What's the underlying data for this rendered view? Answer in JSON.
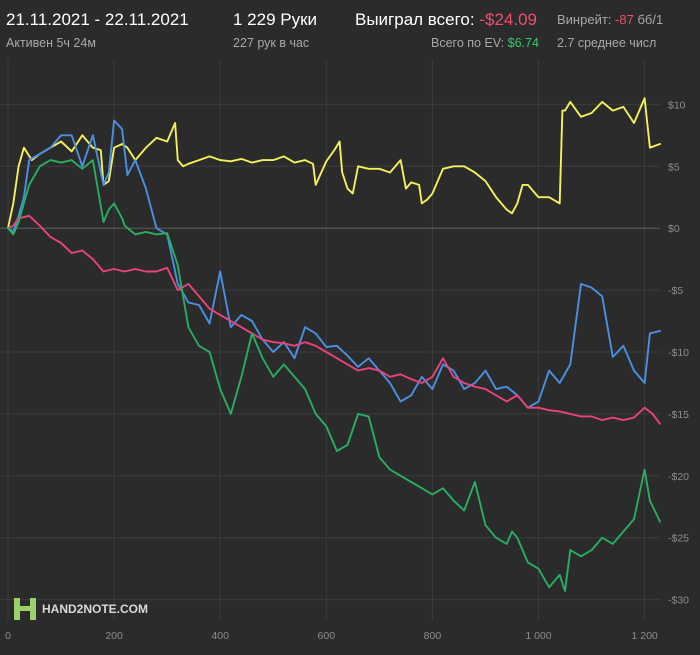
{
  "header": {
    "date_range": "21.11.2021 - 22.11.2021",
    "active_time": "Активен 5ч 24м",
    "hands": "1 229 Руки",
    "hands_per_hour": "227 рук в час",
    "won_label": "Выиграл всего:",
    "won_value": "-$24.09",
    "ev_label": "Всего по EV:",
    "ev_value": "$6.74",
    "winrate_label": "Винрейт:",
    "winrate_value": "-87",
    "winrate_unit": "бб/1",
    "avg_text": "2.7 среднее числ"
  },
  "logo": {
    "text": "HAND2NOTE.COM"
  },
  "colors": {
    "background": "#2b2b2b",
    "negative": "#ef4e6e",
    "positive": "#2ecc71",
    "yellow": "#f4f05a",
    "blue": "#4a90e2",
    "pink": "#e8437a",
    "green": "#27ae60"
  },
  "chart_data": {
    "type": "line",
    "xlim": [
      0,
      1229
    ],
    "ylim": [
      -31,
      11
    ],
    "x_ticks": [
      0,
      200,
      400,
      600,
      800,
      1000,
      1200
    ],
    "x_tick_labels": [
      "0",
      "200",
      "400",
      "600",
      "800",
      "1 000",
      "1 200"
    ],
    "y_ticks": [
      10,
      5,
      0,
      -5,
      -10,
      -15,
      -20,
      -25,
      -30
    ],
    "y_tick_labels": [
      "$10",
      "$5",
      "$0",
      "-$5",
      "-$10",
      "-$15",
      "-$20",
      "-$25",
      "-$30"
    ],
    "grid": true,
    "series": [
      {
        "color": "#f4f05a",
        "x": [
          0,
          10,
          20,
          30,
          45,
          60,
          80,
          100,
          120,
          140,
          160,
          175,
          180,
          190,
          200,
          215,
          225,
          240,
          260,
          280,
          300,
          315,
          320,
          330,
          340,
          360,
          380,
          400,
          420,
          440,
          460,
          480,
          500,
          520,
          540,
          560,
          575,
          580,
          600,
          615,
          625,
          630,
          640,
          650,
          660,
          680,
          700,
          720,
          740,
          750,
          760,
          775,
          780,
          790,
          800,
          820,
          840,
          860,
          880,
          900,
          920,
          940,
          950,
          960,
          970,
          980,
          1000,
          1020,
          1040,
          1045,
          1050,
          1060,
          1080,
          1100,
          1120,
          1140,
          1160,
          1180,
          1200,
          1210,
          1229
        ],
        "y": [
          0,
          2,
          5,
          6.5,
          5.5,
          6,
          6.5,
          7,
          6.2,
          7.5,
          6.5,
          6.3,
          3.5,
          3.8,
          6.5,
          6.8,
          6.5,
          5.5,
          6.5,
          7.3,
          7,
          8.5,
          5.5,
          5,
          5.2,
          5.5,
          5.8,
          5.5,
          5.4,
          5.6,
          5.3,
          5.5,
          5.5,
          5.8,
          5.3,
          5.5,
          5.2,
          3.5,
          5.4,
          6.3,
          7,
          4.5,
          3.2,
          2.8,
          5,
          4.8,
          4.8,
          4.5,
          5.5,
          3.2,
          3.7,
          3.5,
          2,
          2.3,
          2.8,
          4.8,
          5,
          5,
          4.5,
          3.8,
          2.5,
          1.5,
          1.2,
          2,
          3.5,
          3.5,
          2.5,
          2.5,
          2,
          9.5,
          9.5,
          10.2,
          9,
          9.3,
          10.2,
          9.5,
          9.8,
          8.5,
          10.5,
          6.5,
          6.8
        ]
      },
      {
        "color": "#4a90e2",
        "x": [
          0,
          10,
          20,
          30,
          40,
          60,
          80,
          100,
          120,
          140,
          160,
          180,
          190,
          200,
          215,
          225,
          240,
          260,
          280,
          300,
          320,
          340,
          360,
          380,
          400,
          420,
          440,
          460,
          480,
          500,
          520,
          540,
          560,
          580,
          600,
          620,
          640,
          660,
          680,
          700,
          720,
          740,
          760,
          780,
          800,
          820,
          840,
          860,
          880,
          900,
          920,
          940,
          960,
          980,
          1000,
          1020,
          1040,
          1060,
          1080,
          1100,
          1120,
          1140,
          1160,
          1180,
          1200,
          1210,
          1229
        ],
        "y": [
          0,
          -0.3,
          1,
          2.5,
          5.5,
          6,
          6.5,
          7.5,
          7.5,
          5,
          7.5,
          3.5,
          4.5,
          8.7,
          8,
          4.3,
          5.5,
          3.2,
          0,
          -0.5,
          -4.5,
          -6,
          -6.2,
          -7.7,
          -3.5,
          -8,
          -7,
          -7.5,
          -9,
          -10,
          -9.2,
          -10.5,
          -8,
          -8.5,
          -9.6,
          -9.5,
          -10.3,
          -11.2,
          -10.5,
          -11.5,
          -12.5,
          -14,
          -13.5,
          -12,
          -13,
          -11,
          -11.5,
          -13,
          -12.5,
          -11.5,
          -13,
          -12.8,
          -13.5,
          -14.5,
          -14,
          -11.5,
          -12.5,
          -11,
          -4.5,
          -4.8,
          -5.5,
          -10.4,
          -9.5,
          -11.5,
          -12.5,
          -8.5,
          -8.3
        ]
      },
      {
        "color": "#e8437a",
        "x": [
          0,
          10,
          20,
          40,
          60,
          80,
          100,
          120,
          140,
          160,
          180,
          200,
          220,
          240,
          260,
          280,
          300,
          320,
          340,
          360,
          380,
          400,
          420,
          440,
          460,
          480,
          500,
          520,
          540,
          560,
          580,
          600,
          620,
          640,
          660,
          680,
          700,
          720,
          740,
          760,
          780,
          800,
          820,
          840,
          860,
          880,
          900,
          920,
          940,
          960,
          980,
          1000,
          1020,
          1040,
          1060,
          1080,
          1100,
          1120,
          1140,
          1160,
          1180,
          1200,
          1215,
          1229
        ],
        "y": [
          0,
          0.2,
          0.8,
          1,
          0.2,
          -0.7,
          -1.2,
          -2,
          -1.8,
          -2.5,
          -3.5,
          -3.3,
          -3.5,
          -3.3,
          -3.5,
          -3.5,
          -3.2,
          -5,
          -4.5,
          -5.5,
          -6.5,
          -7,
          -7.5,
          -8,
          -8.5,
          -9,
          -9.2,
          -9.3,
          -9.5,
          -9.2,
          -9.5,
          -10,
          -10.5,
          -11,
          -11.5,
          -11.3,
          -11.5,
          -12,
          -11.8,
          -12.2,
          -12.5,
          -12,
          -10.5,
          -12,
          -12.5,
          -12.8,
          -13,
          -13.5,
          -14,
          -13.5,
          -14.5,
          -14.5,
          -14.7,
          -14.8,
          -15,
          -15.2,
          -15.2,
          -15.5,
          -15.3,
          -15.5,
          -15.3,
          -14.5,
          -15,
          -15.8
        ]
      },
      {
        "color": "#27ae60",
        "x": [
          0,
          10,
          20,
          30,
          40,
          60,
          80,
          100,
          120,
          140,
          160,
          180,
          190,
          200,
          215,
          220,
          240,
          260,
          280,
          300,
          320,
          340,
          360,
          380,
          400,
          420,
          440,
          460,
          480,
          500,
          520,
          540,
          560,
          580,
          600,
          620,
          640,
          660,
          680,
          700,
          720,
          740,
          760,
          780,
          800,
          820,
          840,
          860,
          880,
          900,
          920,
          940,
          950,
          960,
          980,
          1000,
          1020,
          1040,
          1050,
          1060,
          1080,
          1100,
          1120,
          1140,
          1160,
          1180,
          1200,
          1210,
          1229
        ],
        "y": [
          0,
          -0.5,
          0.5,
          2,
          3.5,
          5,
          5.5,
          5.3,
          5.5,
          4.8,
          5.5,
          0.5,
          1.5,
          2,
          0.8,
          0.2,
          -0.5,
          -0.3,
          -0.5,
          -0.4,
          -3,
          -8,
          -9.5,
          -10,
          -13,
          -15,
          -12,
          -8.5,
          -10.5,
          -12,
          -11,
          -12,
          -13,
          -15,
          -16,
          -18,
          -17.5,
          -15,
          -15.2,
          -18.5,
          -19.5,
          -20,
          -20.5,
          -21,
          -21.5,
          -21,
          -22,
          -22.8,
          -20.5,
          -24,
          -25,
          -25.5,
          -24.5,
          -25,
          -27,
          -27.5,
          -29,
          -28,
          -29.3,
          -26,
          -26.5,
          -26,
          -25,
          -25.5,
          -24.5,
          -23.5,
          -19.5,
          -22,
          -23.7
        ]
      }
    ]
  }
}
